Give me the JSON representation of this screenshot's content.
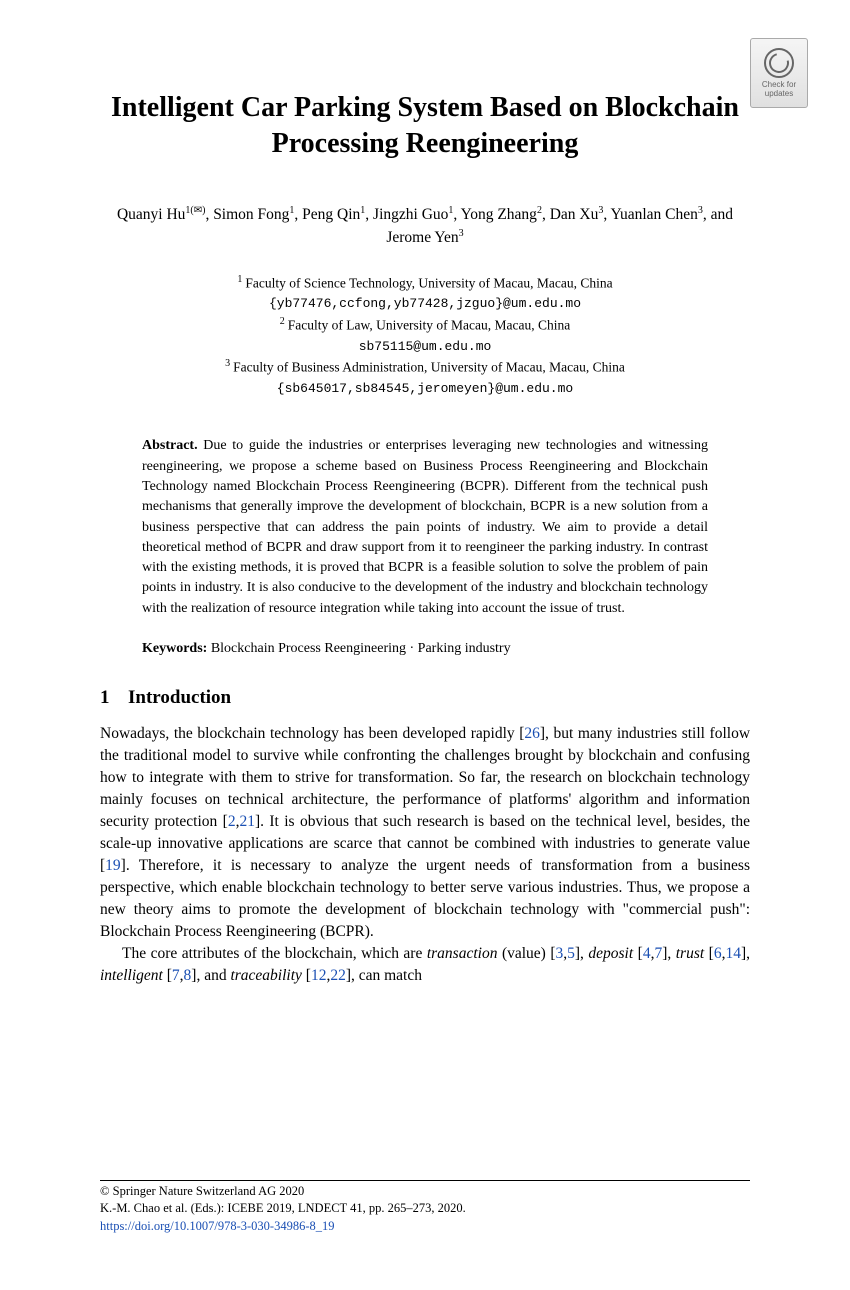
{
  "badge": {
    "line1": "Check for",
    "line2": "updates"
  },
  "title": "Intelligent Car Parking System Based on Blockchain Processing Reengineering",
  "authors_html": "Quanyi Hu<sup>1(✉)</sup>, Simon Fong<sup>1</sup>, Peng Qin<sup>1</sup>, Jingzhi Guo<sup>1</sup>, Yong Zhang<sup>2</sup>, Dan Xu<sup>3</sup>, Yuanlan Chen<sup>3</sup>, and Jerome Yen<sup>3</sup>",
  "affiliations": [
    {
      "num": "1",
      "text": "Faculty of Science Technology, University of Macau, Macau, China",
      "email": "{yb77476,ccfong,yb77428,jzguo}@um.edu.mo"
    },
    {
      "num": "2",
      "text": "Faculty of Law, University of Macau, Macau, China",
      "email": "sb75115@um.edu.mo"
    },
    {
      "num": "3",
      "text": "Faculty of Business Administration, University of Macau, Macau, China",
      "email": "{sb645017,sb84545,jeromeyen}@um.edu.mo"
    }
  ],
  "abstract_label": "Abstract.",
  "abstract_text": "Due to guide the industries or enterprises leveraging new technologies and witnessing reengineering, we propose a scheme based on Business Process Reengineering and Blockchain Technology named Blockchain Process Reengineering (BCPR). Different from the technical push mechanisms that generally improve the development of blockchain, BCPR is a new solution from a business perspective that can address the pain points of industry. We aim to provide a detail theoretical method of BCPR and draw support from it to reengineer the parking industry. In contrast with the existing methods, it is proved that BCPR is a feasible solution to solve the problem of pain points in industry. It is also conducive to the development of the industry and blockchain technology with the realization of resource integration while taking into account the issue of trust.",
  "keywords_label": "Keywords:",
  "keywords_text": "Blockchain Process Reengineering · Parking industry",
  "section1": {
    "number": "1",
    "title": "Introduction"
  },
  "intro_para1_parts": {
    "p1": "Nowadays, the blockchain technology has been developed rapidly [",
    "r1": "26",
    "p2": "], but many industries still follow the traditional model to survive while confronting the challenges brought by blockchain and confusing how to integrate with them to strive for transformation. So far, the research on blockchain technology mainly focuses on technical architecture, the performance of platforms' algorithm and information security protection [",
    "r2": "2",
    "p3": ",",
    "r3": "21",
    "p4": "]. It is obvious that such research is based on the technical level, besides, the scale-up innovative applications are scarce that cannot be combined with industries to generate value [",
    "r4": "19",
    "p5": "]. Therefore, it is necessary to analyze the urgent needs of transformation from a business perspective, which enable blockchain technology to better serve various industries. Thus, we propose a new theory aims to promote the development of blockchain technology with \"commercial push\": Blockchain Process Reengineering (BCPR)."
  },
  "intro_para2_parts": {
    "p1": "The core attributes of the blockchain, which are ",
    "i1": "transaction",
    "p2": " (value) [",
    "r1": "3",
    "p3": ",",
    "r2": "5",
    "p4": "], ",
    "i2": "deposit",
    "p5": " [",
    "r3": "4",
    "p6": ",",
    "r4": "7",
    "p7": "], ",
    "i3": "trust",
    "p8": " [",
    "r5": "6",
    "p9": ",",
    "r6": "14",
    "p10": "], ",
    "i4": "intelligent",
    "p11": " [",
    "r7": "7",
    "p12": ",",
    "r8": "8",
    "p13": "], and ",
    "i5": "traceability",
    "p14": " [",
    "r9": "12",
    "p15": ",",
    "r10": "22",
    "p16": "], can match"
  },
  "footer": {
    "copyright": "© Springer Nature Switzerland AG 2020",
    "citation": "K.-M. Chao et al. (Eds.): ICEBE 2019, LNDECT 41, pp. 265–273, 2020.",
    "doi": "https://doi.org/10.1007/978-3-030-34986-8_19"
  },
  "colors": {
    "link": "#1a4fb3",
    "text": "#000000",
    "bg": "#ffffff"
  }
}
